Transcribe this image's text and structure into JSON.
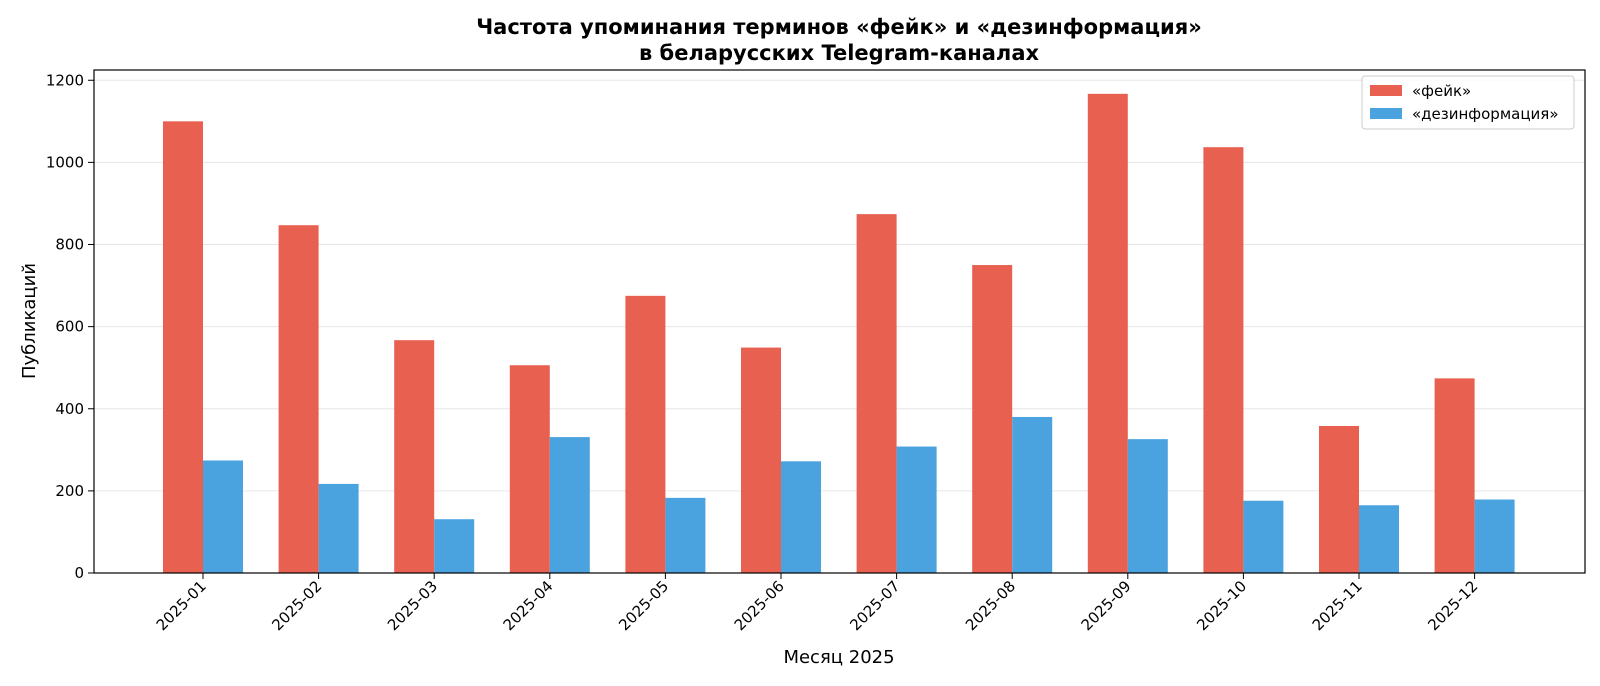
{
  "chart_data": {
    "type": "bar",
    "title": "Частота упоминания терминов «фейк» и «дезинформация»",
    "subtitle": "в беларусских Telegram-каналах",
    "xlabel": "Месяц 2025",
    "ylabel": "Публикаций",
    "ylim": [
      0,
      1225
    ],
    "yticks": [
      0,
      200,
      400,
      600,
      800,
      1000,
      1200
    ],
    "grid": "horizontal",
    "legend_position": "top-right",
    "categories": [
      "2025-01",
      "2025-02",
      "2025-03",
      "2025-04",
      "2025-05",
      "2025-06",
      "2025-07",
      "2025-08",
      "2025-09",
      "2025-10",
      "2025-11",
      "2025-12"
    ],
    "series": [
      {
        "name": "«фейк»",
        "color": "#e8604f",
        "values": [
          1100,
          847,
          567,
          506,
          675,
          549,
          874,
          750,
          1167,
          1037,
          358,
          474
        ]
      },
      {
        "name": "«дезинформация»",
        "color": "#4aa3df",
        "values": [
          274,
          217,
          131,
          331,
          183,
          272,
          308,
          380,
          326,
          176,
          165,
          179
        ]
      }
    ]
  }
}
